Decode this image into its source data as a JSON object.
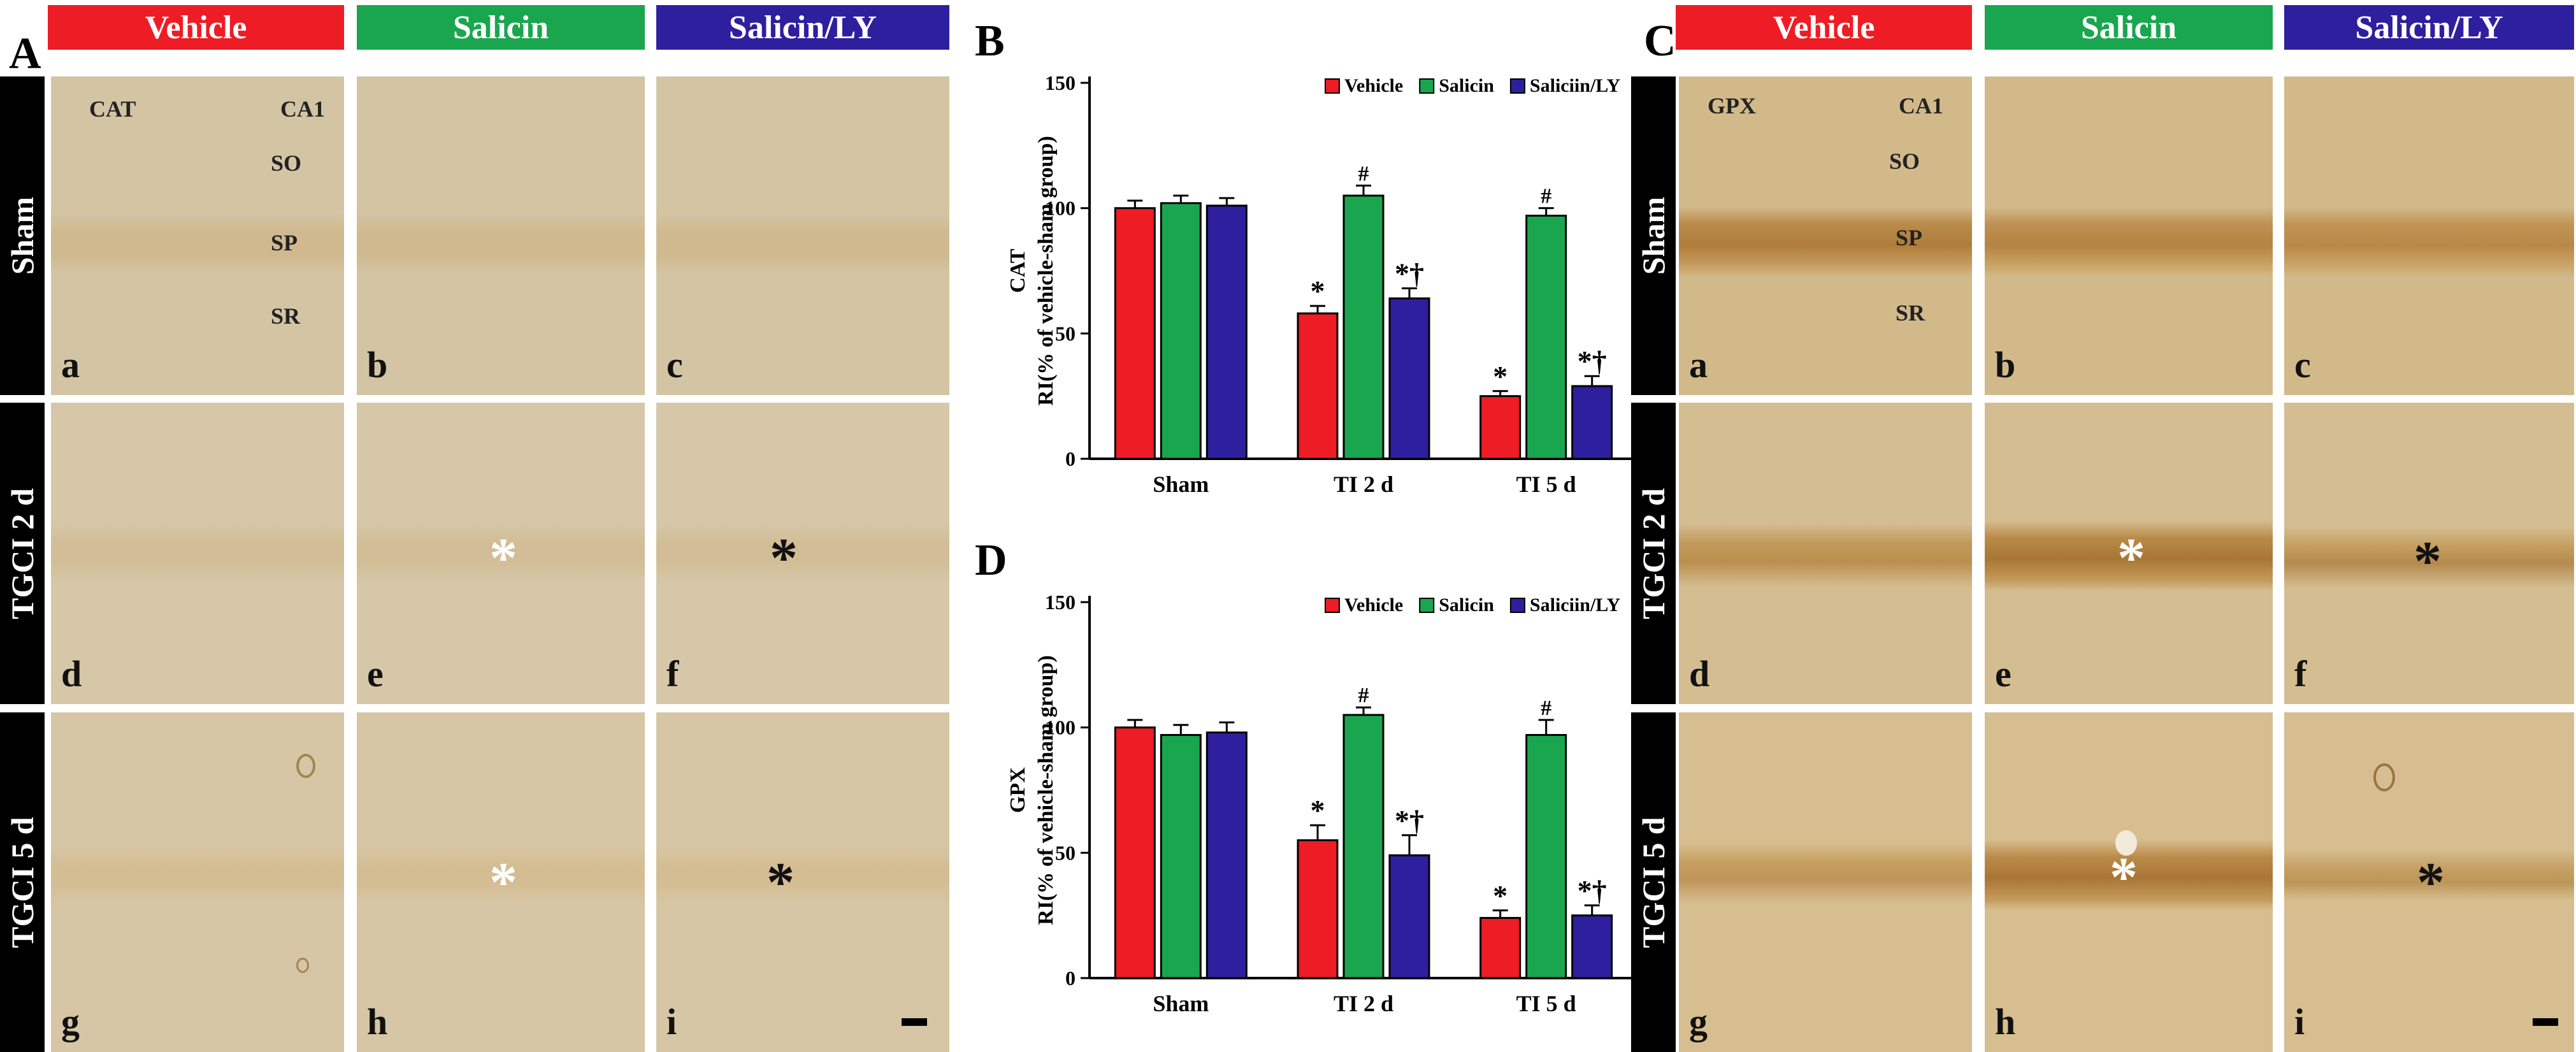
{
  "panels": {
    "A": {
      "letter": "A"
    },
    "B": {
      "letter": "B"
    },
    "C": {
      "letter": "C"
    },
    "D": {
      "letter": "D"
    }
  },
  "columns": [
    "Vehicle",
    "Salicin",
    "Salicin/LY"
  ],
  "colors": {
    "vehicle": "#ee1c24",
    "salicin": "#1aa64f",
    "ly": "#2e1f9e"
  },
  "rows": [
    "Sham",
    "TGCI 2 d",
    "TGCI 5 d"
  ],
  "sublabels": [
    "a",
    "b",
    "c",
    "d",
    "e",
    "f",
    "g",
    "h",
    "i"
  ],
  "panelA": {
    "marker": "CAT",
    "region": "CA1",
    "layers": [
      "SO",
      "SP",
      "SR"
    ]
  },
  "panelC": {
    "marker": "GPX",
    "region": "CA1",
    "layers": [
      "SO",
      "SP",
      "SR"
    ]
  },
  "chart_data": [
    {
      "id": "B",
      "type": "bar",
      "title": "",
      "ylabel_marker": "CAT",
      "ylabel": "RI(% of vehicle-sham  group)",
      "categories": [
        "Sham",
        "TI 2 d",
        "TI 5 d"
      ],
      "ylim": [
        0,
        150
      ],
      "yticks": [
        0,
        50,
        100,
        150
      ],
      "series": [
        {
          "name": "Vehicle",
          "values": [
            100,
            58,
            25
          ],
          "errors": [
            3,
            3,
            2
          ]
        },
        {
          "name": "Salicin",
          "values": [
            102,
            105,
            97
          ],
          "errors": [
            3,
            4,
            3
          ]
        },
        {
          "name": "Saliciin/LY",
          "values": [
            101,
            64,
            29
          ],
          "errors": [
            3,
            4,
            4
          ]
        }
      ],
      "annotations": [
        {
          "series": 0,
          "cat": 1,
          "text": "*"
        },
        {
          "series": 1,
          "cat": 1,
          "text": "#"
        },
        {
          "series": 2,
          "cat": 1,
          "text": "*†"
        },
        {
          "series": 0,
          "cat": 2,
          "text": "*"
        },
        {
          "series": 1,
          "cat": 2,
          "text": "#"
        },
        {
          "series": 2,
          "cat": 2,
          "text": "*†"
        }
      ]
    },
    {
      "id": "D",
      "type": "bar",
      "title": "",
      "ylabel_marker": "GPX",
      "ylabel": "RI(% of vehicle-sham  group)",
      "categories": [
        "Sham",
        "TI 2 d",
        "TI 5 d"
      ],
      "ylim": [
        0,
        150
      ],
      "yticks": [
        0,
        50,
        100,
        150
      ],
      "series": [
        {
          "name": "Vehicle",
          "values": [
            100,
            55,
            24
          ],
          "errors": [
            3,
            6,
            3
          ]
        },
        {
          "name": "Salicin",
          "values": [
            97,
            105,
            97
          ],
          "errors": [
            4,
            3,
            6
          ]
        },
        {
          "name": "Saliciin/LY",
          "values": [
            98,
            49,
            25
          ],
          "errors": [
            4,
            8,
            4
          ]
        }
      ],
      "annotations": [
        {
          "series": 0,
          "cat": 1,
          "text": "*"
        },
        {
          "series": 1,
          "cat": 1,
          "text": "#"
        },
        {
          "series": 2,
          "cat": 1,
          "text": "*†"
        },
        {
          "series": 0,
          "cat": 2,
          "text": "*"
        },
        {
          "series": 1,
          "cat": 2,
          "text": "#"
        },
        {
          "series": 2,
          "cat": 2,
          "text": "*†"
        }
      ]
    }
  ]
}
